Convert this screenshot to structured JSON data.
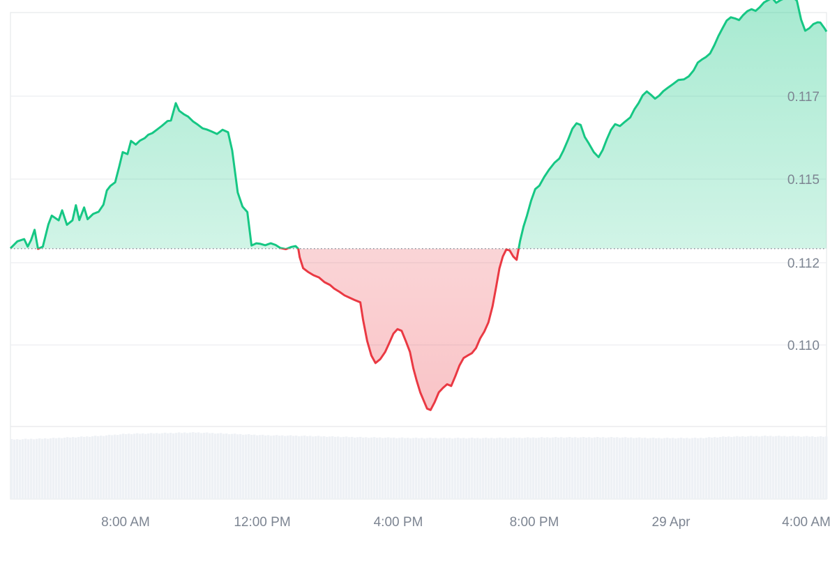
{
  "chart_data": {
    "type": "area",
    "baseline": 0.11186,
    "ylim": [
      0.1055,
      0.1203
    ],
    "y_ticks": [
      {
        "value": 0.11,
        "label": "0.110"
      },
      {
        "value": 0.112,
        "label": "0.112"
      },
      {
        "value": 0.115,
        "label": "0.115"
      },
      {
        "value": 0.117,
        "label": "0.117"
      }
    ],
    "x_ticks": [
      {
        "label": "8:00 AM"
      },
      {
        "label": "12:00 PM"
      },
      {
        "label": "4:00 PM"
      },
      {
        "label": "8:00 PM"
      },
      {
        "label": "29 Apr"
      },
      {
        "label": "4:00 AM"
      }
    ],
    "series": [
      {
        "values": [
          [
            0,
            0.11187
          ],
          [
            10,
            0.11212
          ],
          [
            20,
            0.1122
          ],
          [
            25,
            0.11193
          ],
          [
            30,
            0.11217
          ],
          [
            35,
            0.11253
          ],
          [
            40,
            0.11185
          ],
          [
            47,
            0.11193
          ],
          [
            55,
            0.11272
          ],
          [
            60,
            0.11304
          ],
          [
            70,
            0.11287
          ],
          [
            75,
            0.11323
          ],
          [
            82,
            0.11271
          ],
          [
            90,
            0.11287
          ],
          [
            95,
            0.11341
          ],
          [
            100,
            0.11288
          ],
          [
            107,
            0.11333
          ],
          [
            112,
            0.11291
          ],
          [
            120,
            0.1131
          ],
          [
            128,
            0.11318
          ],
          [
            135,
            0.11343
          ],
          [
            140,
            0.11394
          ],
          [
            145,
            0.1141
          ],
          [
            152,
            0.11423
          ],
          [
            158,
            0.1148
          ],
          [
            163,
            0.11531
          ],
          [
            170,
            0.11524
          ],
          [
            175,
            0.11571
          ],
          [
            182,
            0.11558
          ],
          [
            188,
            0.11572
          ],
          [
            195,
            0.11581
          ],
          [
            200,
            0.11593
          ],
          [
            206,
            0.11599
          ],
          [
            212,
            0.1161
          ],
          [
            220,
            0.11625
          ],
          [
            228,
            0.11642
          ],
          [
            233,
            0.11644
          ],
          [
            240,
            0.11706
          ],
          [
            245,
            0.11679
          ],
          [
            252,
            0.11666
          ],
          [
            258,
            0.11658
          ],
          [
            265,
            0.11641
          ],
          [
            272,
            0.11629
          ],
          [
            279,
            0.11616
          ],
          [
            285,
            0.11612
          ],
          [
            292,
            0.11605
          ],
          [
            300,
            0.11596
          ],
          [
            308,
            0.11611
          ],
          [
            316,
            0.11602
          ],
          [
            322,
            0.11537
          ],
          [
            330,
            0.11387
          ],
          [
            337,
            0.11336
          ],
          [
            344,
            0.11317
          ],
          [
            350,
            0.11197
          ],
          [
            357,
            0.11205
          ],
          [
            363,
            0.11203
          ],
          [
            370,
            0.11198
          ],
          [
            378,
            0.11205
          ],
          [
            385,
            0.11199
          ],
          [
            392,
            0.11188
          ],
          [
            400,
            0.11184
          ],
          [
            408,
            0.11192
          ],
          [
            414,
            0.11195
          ],
          [
            418,
            0.11185
          ],
          [
            420,
            0.11155
          ],
          [
            425,
            0.11116
          ],
          [
            432,
            0.11103
          ],
          [
            440,
            0.11091
          ],
          [
            448,
            0.11083
          ],
          [
            456,
            0.11066
          ],
          [
            464,
            0.11056
          ],
          [
            470,
            0.11043
          ],
          [
            478,
            0.11031
          ],
          [
            485,
            0.11019
          ],
          [
            492,
            0.11011
          ],
          [
            500,
            0.11002
          ],
          [
            508,
            0.10994
          ],
          [
            512,
            0.10932
          ],
          [
            518,
            0.10856
          ],
          [
            524,
            0.10804
          ],
          [
            530,
            0.10777
          ],
          [
            537,
            0.10791
          ],
          [
            544,
            0.10816
          ],
          [
            550,
            0.10848
          ],
          [
            556,
            0.10882
          ],
          [
            562,
            0.10898
          ],
          [
            568,
            0.10892
          ],
          [
            574,
            0.10856
          ],
          [
            580,
            0.10817
          ],
          [
            585,
            0.10758
          ],
          [
            590,
            0.10713
          ],
          [
            595,
            0.10672
          ],
          [
            600,
            0.10643
          ],
          [
            605,
            0.10614
          ],
          [
            610,
            0.10609
          ],
          [
            616,
            0.10637
          ],
          [
            622,
            0.10672
          ],
          [
            628,
            0.10688
          ],
          [
            634,
            0.10701
          ],
          [
            640,
            0.10695
          ],
          [
            646,
            0.1073
          ],
          [
            652,
            0.10768
          ],
          [
            658,
            0.10795
          ],
          [
            664,
            0.10804
          ],
          [
            670,
            0.10812
          ],
          [
            676,
            0.1083
          ],
          [
            682,
            0.10865
          ],
          [
            688,
            0.10889
          ],
          [
            694,
            0.10922
          ],
          [
            700,
            0.10979
          ],
          [
            705,
            0.11046
          ],
          [
            710,
            0.11115
          ],
          [
            715,
            0.11158
          ],
          [
            720,
            0.11183
          ],
          [
            725,
            0.11179
          ],
          [
            730,
            0.11158
          ],
          [
            735,
            0.11146
          ],
          [
            740,
            0.11213
          ],
          [
            745,
            0.11265
          ],
          [
            750,
            0.11304
          ],
          [
            756,
            0.11357
          ],
          [
            762,
            0.11399
          ],
          [
            768,
            0.11411
          ],
          [
            775,
            0.11442
          ],
          [
            782,
            0.11468
          ],
          [
            790,
            0.11493
          ],
          [
            797,
            0.11508
          ],
          [
            803,
            0.11537
          ],
          [
            810,
            0.11577
          ],
          [
            816,
            0.11615
          ],
          [
            822,
            0.11634
          ],
          [
            828,
            0.11628
          ],
          [
            834,
            0.11585
          ],
          [
            840,
            0.11561
          ],
          [
            847,
            0.11531
          ],
          [
            854,
            0.11513
          ],
          [
            860,
            0.11539
          ],
          [
            866,
            0.11577
          ],
          [
            872,
            0.11611
          ],
          [
            878,
            0.11631
          ],
          [
            885,
            0.11624
          ],
          [
            892,
            0.11639
          ],
          [
            900,
            0.11655
          ],
          [
            906,
            0.11684
          ],
          [
            912,
            0.11706
          ],
          [
            918,
            0.11734
          ],
          [
            924,
            0.11748
          ],
          [
            930,
            0.11736
          ],
          [
            936,
            0.11722
          ],
          [
            942,
            0.11733
          ],
          [
            948,
            0.11749
          ],
          [
            955,
            0.11762
          ],
          [
            962,
            0.11774
          ],
          [
            970,
            0.11789
          ],
          [
            978,
            0.11791
          ],
          [
            985,
            0.11802
          ],
          [
            992,
            0.11823
          ],
          [
            998,
            0.11851
          ],
          [
            1004,
            0.11862
          ],
          [
            1010,
            0.11871
          ],
          [
            1016,
            0.11884
          ],
          [
            1022,
            0.11913
          ],
          [
            1028,
            0.11946
          ],
          [
            1034,
            0.11974
          ],
          [
            1040,
            0.12001
          ],
          [
            1046,
            0.12013
          ],
          [
            1052,
            0.12009
          ],
          [
            1058,
            0.12003
          ],
          [
            1064,
            0.12021
          ],
          [
            1070,
            0.12035
          ],
          [
            1076,
            0.12042
          ],
          [
            1082,
            0.12036
          ],
          [
            1088,
            0.12049
          ],
          [
            1094,
            0.12066
          ],
          [
            1100,
            0.12074
          ],
          [
            1106,
            0.12082
          ],
          [
            1112,
            0.12065
          ],
          [
            1118,
            0.12074
          ],
          [
            1124,
            0.12081
          ],
          [
            1130,
            0.12079
          ],
          [
            1136,
            0.12086
          ],
          [
            1142,
            0.12072
          ],
          [
            1148,
            0.12005
          ],
          [
            1154,
            0.11965
          ],
          [
            1160,
            0.11974
          ],
          [
            1166,
            0.11989
          ],
          [
            1172,
            0.11995
          ],
          [
            1176,
            0.11994
          ],
          [
            1182,
            0.11974
          ],
          [
            1185,
            0.11962
          ]
        ]
      }
    ]
  }
}
